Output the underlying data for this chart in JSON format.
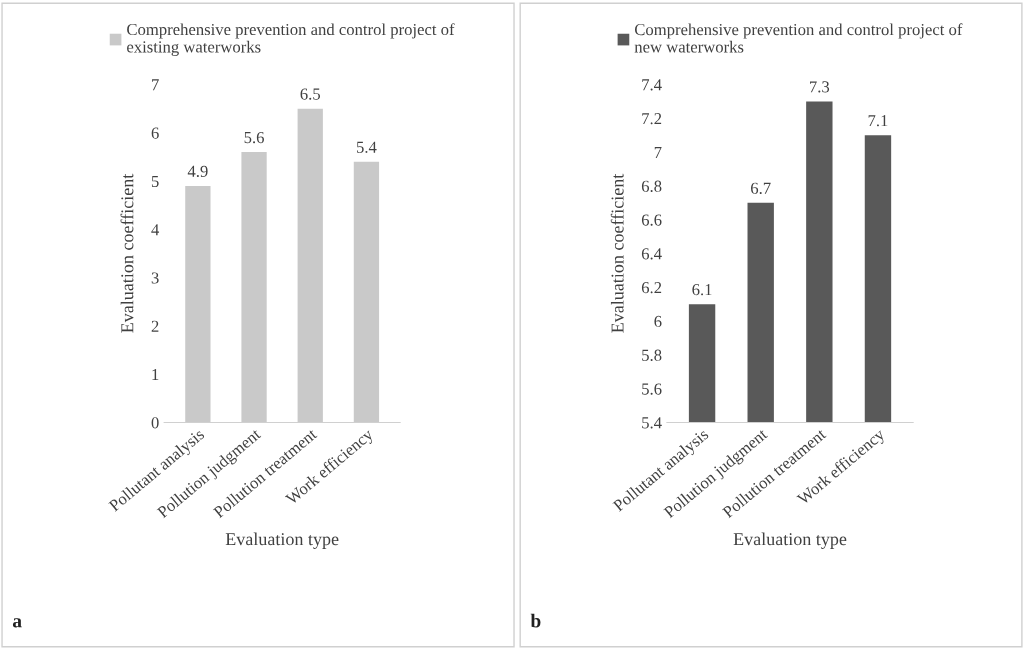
{
  "chart_data": [
    {
      "type": "bar",
      "categories": [
        "Pollutant analysis",
        "Pollution judgment",
        "Pollution treatment",
        "Work efficiency"
      ],
      "xlabel": "Evaluation type",
      "ylabel": "Evaluation coefficient",
      "series": [
        {
          "name": "Comprehensive prevention and control project of existing waterworks",
          "color": "#c9c9c9",
          "values": [
            4.9,
            5.6,
            6.5,
            5.4
          ]
        }
      ],
      "ylim": [
        0,
        7
      ],
      "yticks": [
        0,
        1,
        2,
        3,
        4,
        5,
        6,
        7
      ],
      "data_labels": true,
      "legend": "top",
      "annotations": [
        "a"
      ]
    },
    {
      "type": "bar",
      "categories": [
        "Pollutant analysis",
        "Pollution judgment",
        "Pollution treatment",
        "Work efficiency"
      ],
      "xlabel": "Evaluation type",
      "ylabel": "Evaluation coefficient",
      "series": [
        {
          "name": "Comprehensive prevention and control project of new waterworks",
          "color": "#595959",
          "values": [
            6.1,
            6.7,
            7.3,
            7.1
          ]
        }
      ],
      "ylim": [
        5.4,
        7.4
      ],
      "yticks": [
        5.4,
        5.6,
        5.8,
        6,
        6.2,
        6.4,
        6.6,
        6.8,
        7,
        7.2,
        7.4
      ],
      "data_labels": true,
      "legend": "top",
      "annotations": [
        "b"
      ]
    }
  ]
}
